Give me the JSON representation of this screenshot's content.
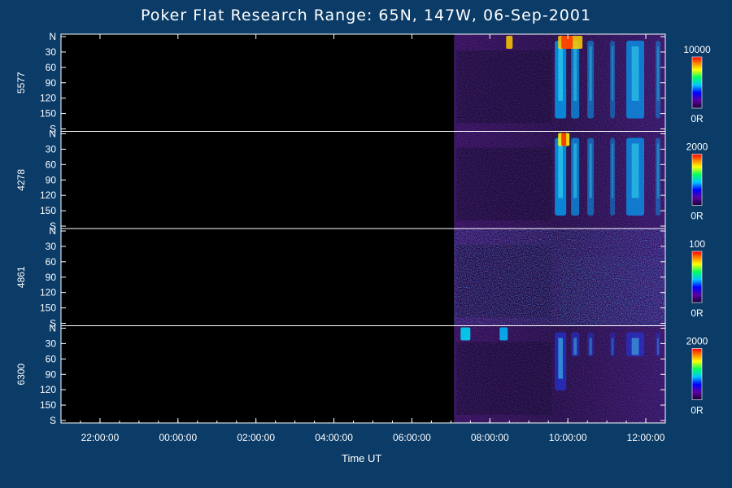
{
  "title": "Poker Flat Research Range: 65N, 147W, 06-Sep-2001",
  "chart_data": {
    "type": "heatmap",
    "title": "Poker Flat Research Range: 65N, 147W, 06-Sep-2001",
    "xlabel": "Time UT",
    "x_ticks": [
      "22:00:00",
      "00:00:00",
      "02:00:00",
      "04:00:00",
      "06:00:00",
      "08:00:00",
      "10:00:00",
      "12:00:00"
    ],
    "y_ticks": [
      "N",
      "30",
      "60",
      "90",
      "120",
      "150",
      "S"
    ],
    "data_start": "07:05:00",
    "grid": false,
    "panels": [
      {
        "name": "5577",
        "colorbar_max": "10000",
        "colorbar_min": "0R"
      },
      {
        "name": "4278",
        "colorbar_max": "2000",
        "colorbar_min": "0R"
      },
      {
        "name": "4861",
        "colorbar_max": "100",
        "colorbar_min": "0R"
      },
      {
        "name": "6300",
        "colorbar_max": "2000",
        "colorbar_min": "0R"
      }
    ]
  }
}
